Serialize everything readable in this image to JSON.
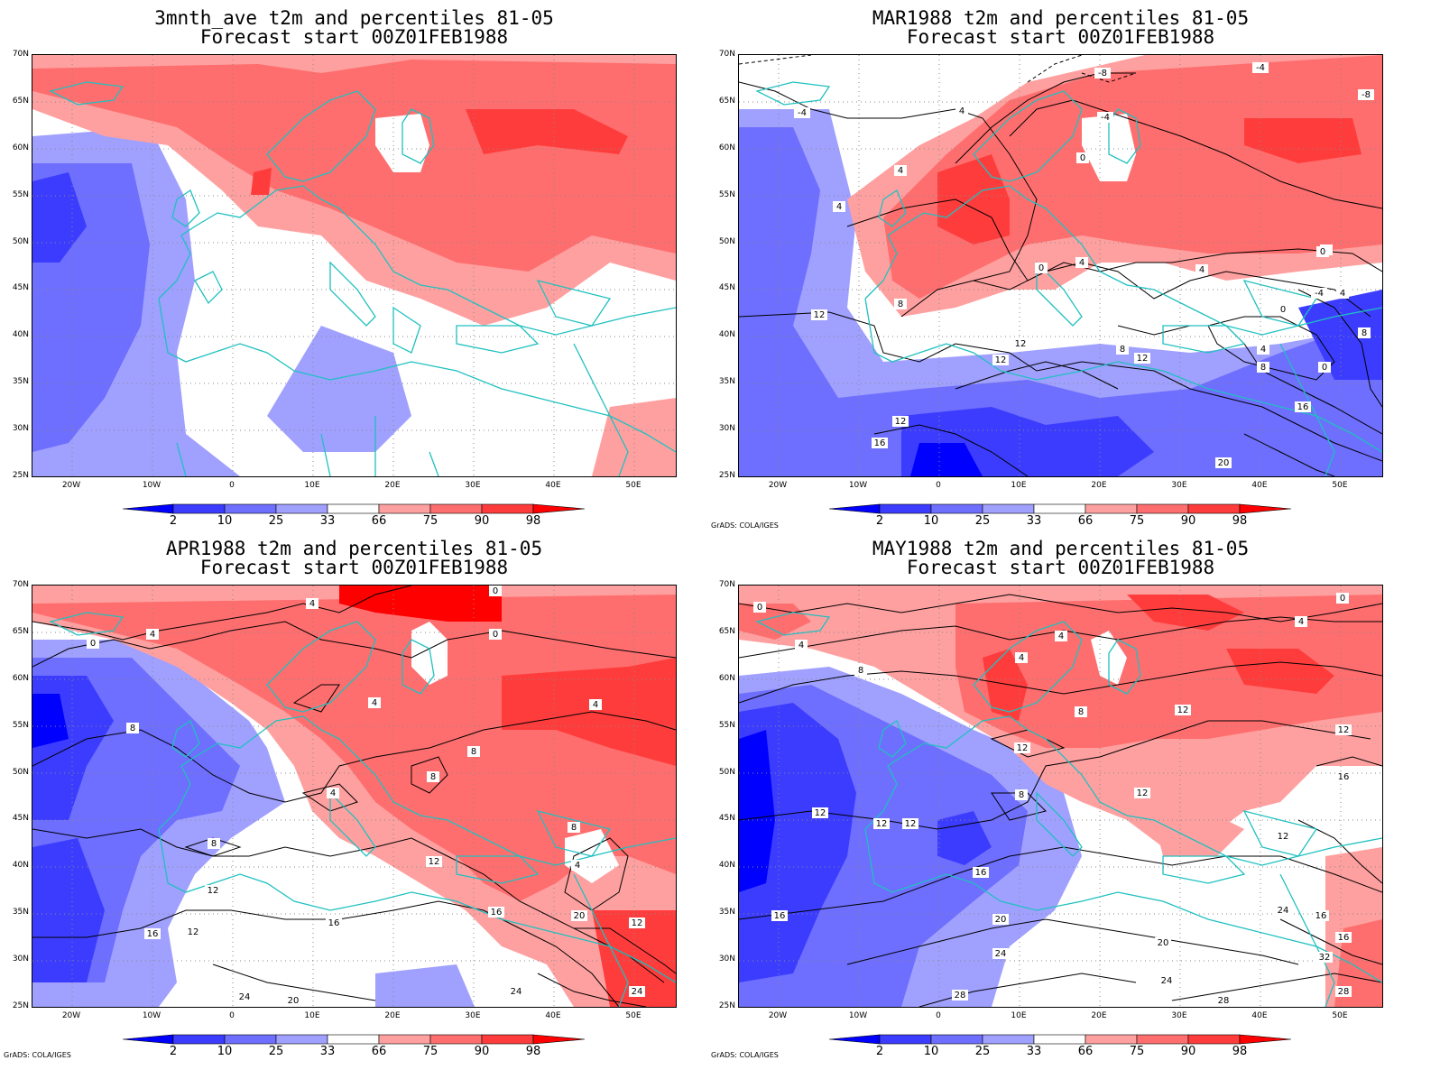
{
  "panels": [
    {
      "title_line1": "3mnth_ave t2m and percentiles 81-05",
      "title_line2": "Forecast start 00Z01FEB1988"
    },
    {
      "title_line1": "MAR1988 t2m and percentiles 81-05",
      "title_line2": "Forecast start 00Z01FEB1988"
    },
    {
      "title_line1": "APR1988 t2m and percentiles 81-05",
      "title_line2": "Forecast start 00Z01FEB1988"
    },
    {
      "title_line1": "MAY1988 t2m and percentiles 81-05",
      "title_line2": "Forecast start 00Z01FEB1988"
    }
  ],
  "lat_labels": [
    "70N",
    "65N",
    "60N",
    "55N",
    "50N",
    "45N",
    "40N",
    "35N",
    "30N",
    "25N"
  ],
  "lon_labels": [
    "20W",
    "10W",
    "0",
    "10E",
    "20E",
    "30E",
    "40E",
    "50E"
  ],
  "colorbar": {
    "ticks": [
      "2",
      "10",
      "25",
      "33",
      "66",
      "75",
      "90",
      "98"
    ],
    "colors": [
      "#0000ff",
      "#3c3cff",
      "#6e6eff",
      "#a0a0ff",
      "#ffffff",
      "#ffa0a0",
      "#ff6e6e",
      "#ff3c3c",
      "#ff0000"
    ]
  },
  "credit": "GrADS: COLA/IGES",
  "contour_labels": {
    "mar": [
      "-8",
      "-4",
      "-4",
      "-8",
      "4",
      "-4",
      "0",
      "4",
      "4",
      "8",
      "0",
      "4",
      "0",
      "4",
      "8",
      "12",
      "12",
      "12",
      "8",
      "12",
      "0",
      "4",
      "8",
      "16",
      "12",
      "16",
      "20",
      "-4",
      "4",
      "8",
      "0"
    ],
    "apr": [
      "4",
      "4",
      "0",
      "0",
      "0",
      "4",
      "4",
      "8",
      "8",
      "8",
      "4",
      "8",
      "8",
      "12",
      "12",
      "16",
      "16",
      "4",
      "20",
      "12",
      "16",
      "24",
      "20",
      "24",
      "24",
      "12"
    ],
    "may": [
      "0",
      "4",
      "4",
      "8",
      "4",
      "4",
      "8",
      "12",
      "12",
      "12",
      "12",
      "8",
      "12",
      "16",
      "16",
      "12",
      "16",
      "20",
      "24",
      "20",
      "24",
      "28",
      "28",
      "32",
      "24",
      "28",
      "12",
      "16",
      "12",
      "16",
      "0",
      "4"
    ]
  }
}
